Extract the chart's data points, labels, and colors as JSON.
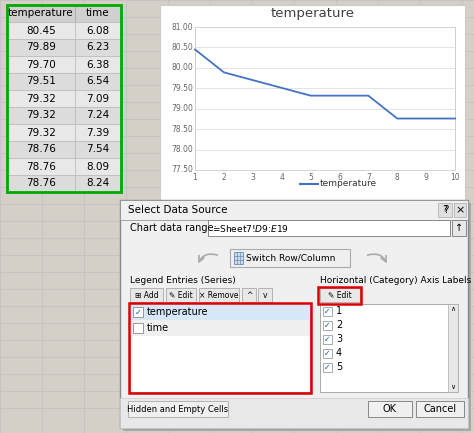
{
  "table_headers": [
    "temperature",
    "time"
  ],
  "table_data": [
    [
      80.45,
      6.08
    ],
    [
      79.89,
      6.23
    ],
    [
      79.7,
      6.38
    ],
    [
      79.51,
      6.54
    ],
    [
      79.32,
      7.09
    ],
    [
      79.32,
      7.24
    ],
    [
      79.32,
      7.39
    ],
    [
      78.76,
      7.54
    ],
    [
      78.76,
      8.09
    ],
    [
      78.76,
      8.24
    ]
  ],
  "chart_title": "temperature",
  "chart_x": [
    1,
    2,
    3,
    4,
    5,
    6,
    7,
    8,
    9,
    10
  ],
  "chart_y": [
    80.45,
    79.89,
    79.7,
    79.51,
    79.32,
    79.32,
    79.32,
    78.76,
    78.76,
    78.76
  ],
  "chart_ylim": [
    77.5,
    81.0
  ],
  "chart_yticks": [
    77.5,
    78.0,
    78.5,
    79.0,
    79.5,
    80.0,
    80.5,
    81.0
  ],
  "chart_line_color": "#4472C4",
  "legend_label": "temperature",
  "dialog_title": "Select Data Source",
  "chart_range_text": "=Sheet7!$D$9:$E$19",
  "legend_entries": [
    "temperature",
    "time"
  ],
  "legend_checked": [
    true,
    false
  ],
  "axis_labels_right": [
    "1",
    "2",
    "3",
    "4",
    "5"
  ],
  "spreadsheet_bg": "#D4D0C8",
  "cell_bg_even": "#E8E8E8",
  "cell_bg_odd": "#E0E0E0",
  "header_bg": "#D0D0D0",
  "dialog_bg": "#F0F0F0",
  "dialog_titlebar_bg": "#4A6EA8",
  "white": "#FFFFFF",
  "grid_color": "#C0C0C0",
  "chart_bg": "#F8F8F8"
}
